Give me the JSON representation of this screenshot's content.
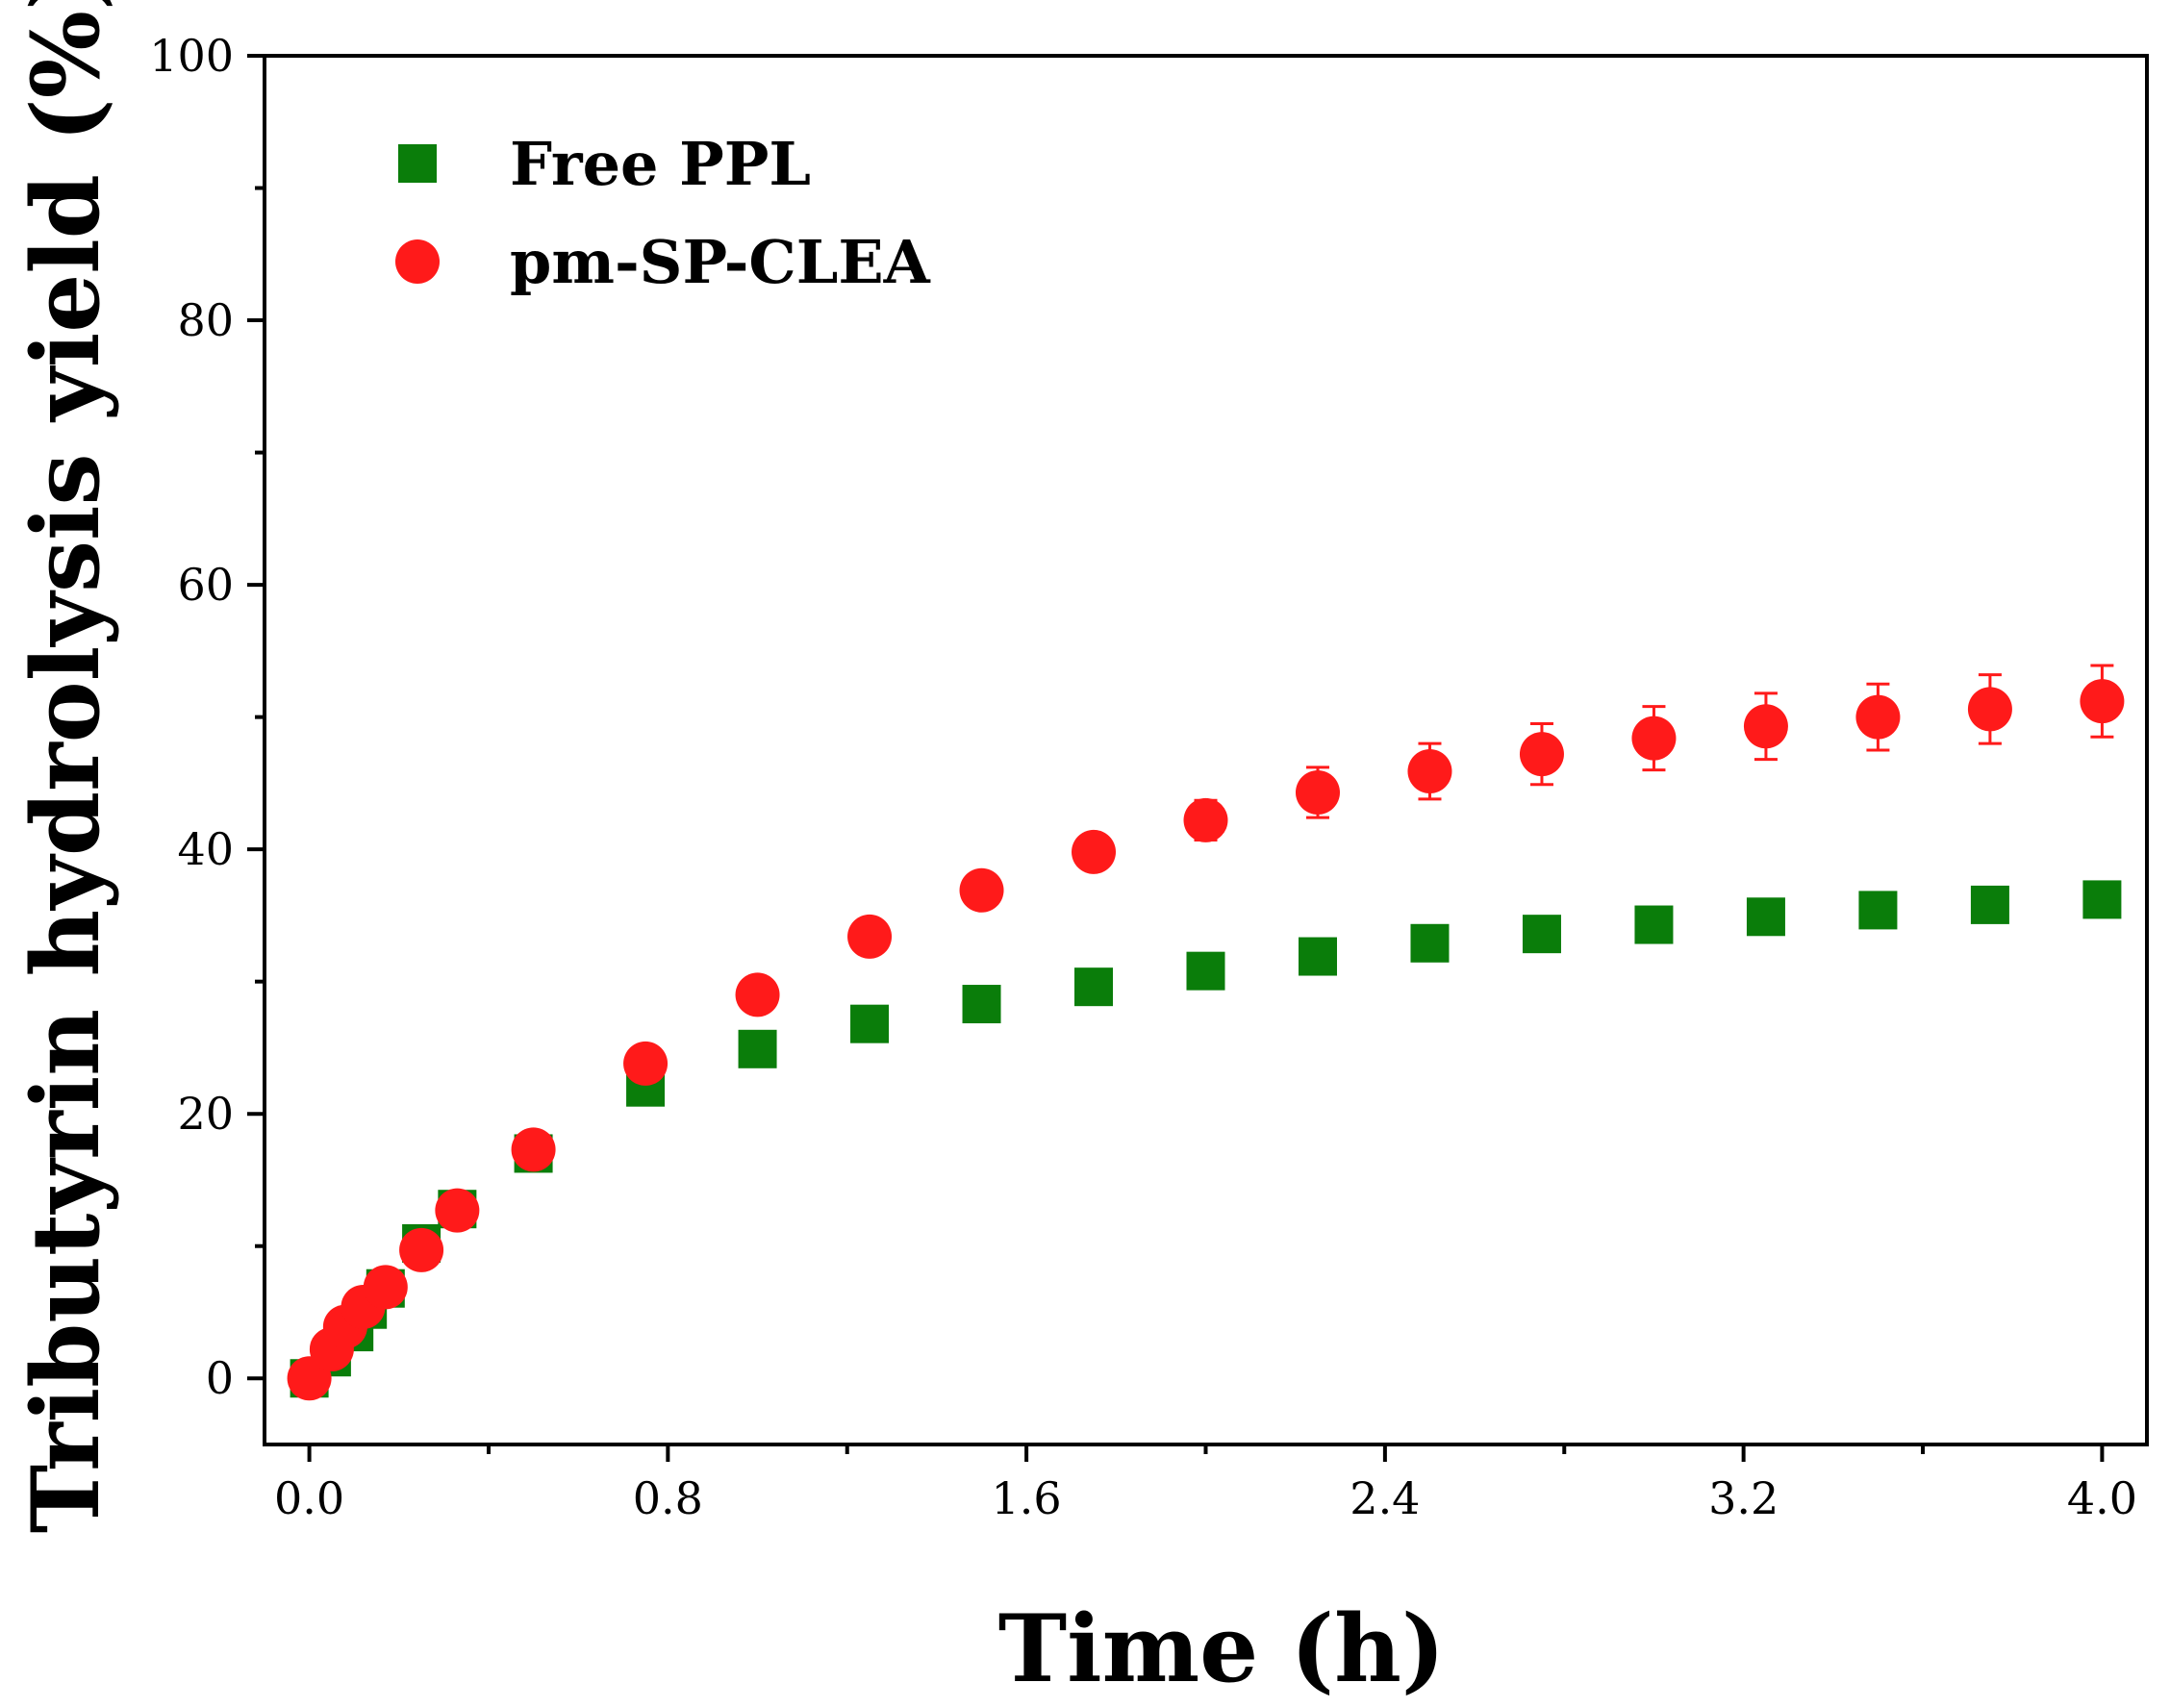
{
  "chart_data": {
    "type": "scatter",
    "xlabel": "Time (h)",
    "ylabel": "Tributyrin hydrolysis yield (%)",
    "xlim": [
      -0.1,
      4.1
    ],
    "ylim": [
      -5,
      100
    ],
    "x_ticks": [
      "0.0",
      "0.8",
      "1.6",
      "2.4",
      "3.2",
      "4.0"
    ],
    "y_ticks": [
      "0",
      "20",
      "40",
      "60",
      "80",
      "100"
    ],
    "grid": false,
    "legend": "top-left",
    "series": [
      {
        "name": "Free PPL",
        "marker": "square",
        "color": "#0a7d0a",
        "x": [
          0,
          0.05,
          0.1,
          0.13,
          0.17,
          0.25,
          0.33,
          0.5,
          0.75,
          1.0,
          1.25,
          1.5,
          1.75,
          2.0,
          2.25,
          2.5,
          2.75,
          3.0,
          3.25,
          3.5,
          3.75,
          4.0
        ],
        "y": [
          0,
          1.6,
          3.5,
          5.2,
          6.8,
          10.2,
          12.8,
          17.0,
          22.0,
          24.9,
          26.8,
          28.3,
          29.6,
          30.8,
          31.9,
          32.9,
          33.6,
          34.3,
          34.9,
          35.4,
          35.8,
          36.2
        ],
        "error": [
          0.3,
          0.4,
          0.5,
          0.6,
          0.6,
          0.8,
          0.9,
          1.0,
          1.0,
          0.7,
          0.7,
          0.7,
          0.7,
          0.7,
          0.7,
          0.7,
          0.7,
          0.7,
          0.7,
          0.7,
          0.7,
          0.7
        ]
      },
      {
        "name": "pm-SP-CLEA",
        "marker": "circle",
        "color": "#ff1a1a",
        "x": [
          0,
          0.05,
          0.08,
          0.12,
          0.17,
          0.25,
          0.33,
          0.5,
          0.75,
          1.0,
          1.25,
          1.5,
          1.75,
          2.0,
          2.25,
          2.5,
          2.75,
          3.0,
          3.25,
          3.5,
          3.75,
          4.0
        ],
        "y": [
          0,
          2.2,
          3.9,
          5.4,
          6.9,
          9.7,
          12.7,
          17.3,
          23.8,
          29.0,
          33.4,
          36.9,
          39.8,
          42.2,
          44.3,
          45.9,
          47.2,
          48.4,
          49.3,
          50.0,
          50.6,
          51.2
        ],
        "error": [
          0.3,
          0.4,
          0.5,
          0.5,
          0.6,
          0.7,
          0.8,
          0.9,
          0.9,
          0.8,
          0.9,
          1.0,
          1.0,
          1.5,
          1.9,
          2.1,
          2.3,
          2.4,
          2.5,
          2.5,
          2.6,
          2.7
        ]
      }
    ]
  }
}
